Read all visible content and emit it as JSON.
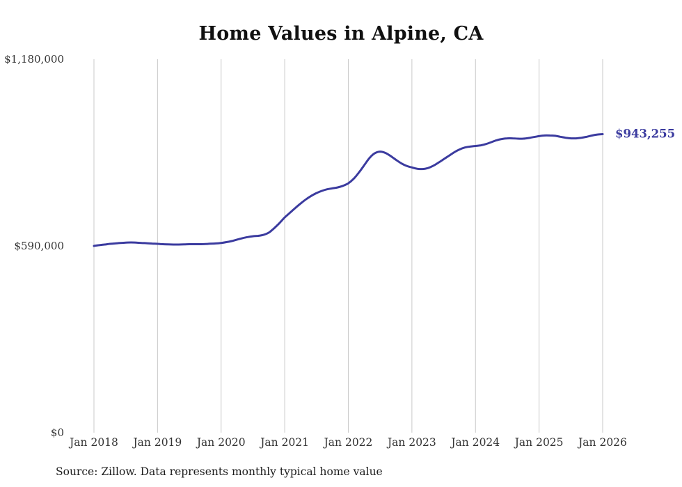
{
  "title": "Home Values in Alpine, CA",
  "source_note": "Source: Zillow. Data represents monthly typical home value",
  "chart_data": {
    "type": "line",
    "title": "Home Values in Alpine, CA",
    "series_name": "Monthly typical home value",
    "frequency": "monthly",
    "x_start": "2018-01",
    "x_end": "2026-01",
    "ylim": [
      0,
      1180000
    ],
    "grid": "vertical-only",
    "legend": "none",
    "line_color": "#3b3b9f",
    "grid_color": "#c9c9c9",
    "tick_text_color": "#333333",
    "end_label": "$943,255",
    "end_value": 943255,
    "y_ticks": [
      {
        "label": "$1,180,000",
        "value": 1180000
      },
      {
        "label": "$590,000",
        "value": 590000
      },
      {
        "label": "$0",
        "value": 0
      }
    ],
    "x_ticks": [
      {
        "label": "Jan 2018",
        "month_index": 0
      },
      {
        "label": "Jan 2019",
        "month_index": 12
      },
      {
        "label": "Jan 2020",
        "month_index": 24
      },
      {
        "label": "Jan 2021",
        "month_index": 36
      },
      {
        "label": "Jan 2022",
        "month_index": 48
      },
      {
        "label": "Jan 2023",
        "month_index": 60
      },
      {
        "label": "Jan 2024",
        "month_index": 72
      },
      {
        "label": "Jan 2025",
        "month_index": 84
      },
      {
        "label": "Jan 2026",
        "month_index": 96
      }
    ],
    "values": [
      590000,
      592500,
      594500,
      596500,
      598000,
      599500,
      600500,
      601000,
      600500,
      599500,
      598500,
      597500,
      596500,
      595500,
      595000,
      594500,
      594500,
      595000,
      595500,
      595500,
      595500,
      596000,
      597000,
      598000,
      599500,
      602000,
      605500,
      610000,
      614500,
      618000,
      620500,
      622000,
      625000,
      632000,
      646000,
      662000,
      680000,
      695000,
      710000,
      724000,
      737000,
      748000,
      757000,
      764000,
      769000,
      772000,
      775000,
      780000,
      788000,
      802000,
      822000,
      845000,
      868000,
      883000,
      888000,
      884000,
      874000,
      862000,
      851000,
      843000,
      838000,
      834000,
      833000,
      836000,
      843000,
      853000,
      864000,
      875000,
      886000,
      895000,
      901000,
      904000,
      906000,
      908000,
      912000,
      918000,
      924000,
      928000,
      930000,
      930000,
      929000,
      929000,
      931000,
      934000,
      937000,
      939000,
      939000,
      938000,
      935000,
      932000,
      930000,
      930000,
      932000,
      935000,
      939000,
      942000,
      943255
    ]
  }
}
